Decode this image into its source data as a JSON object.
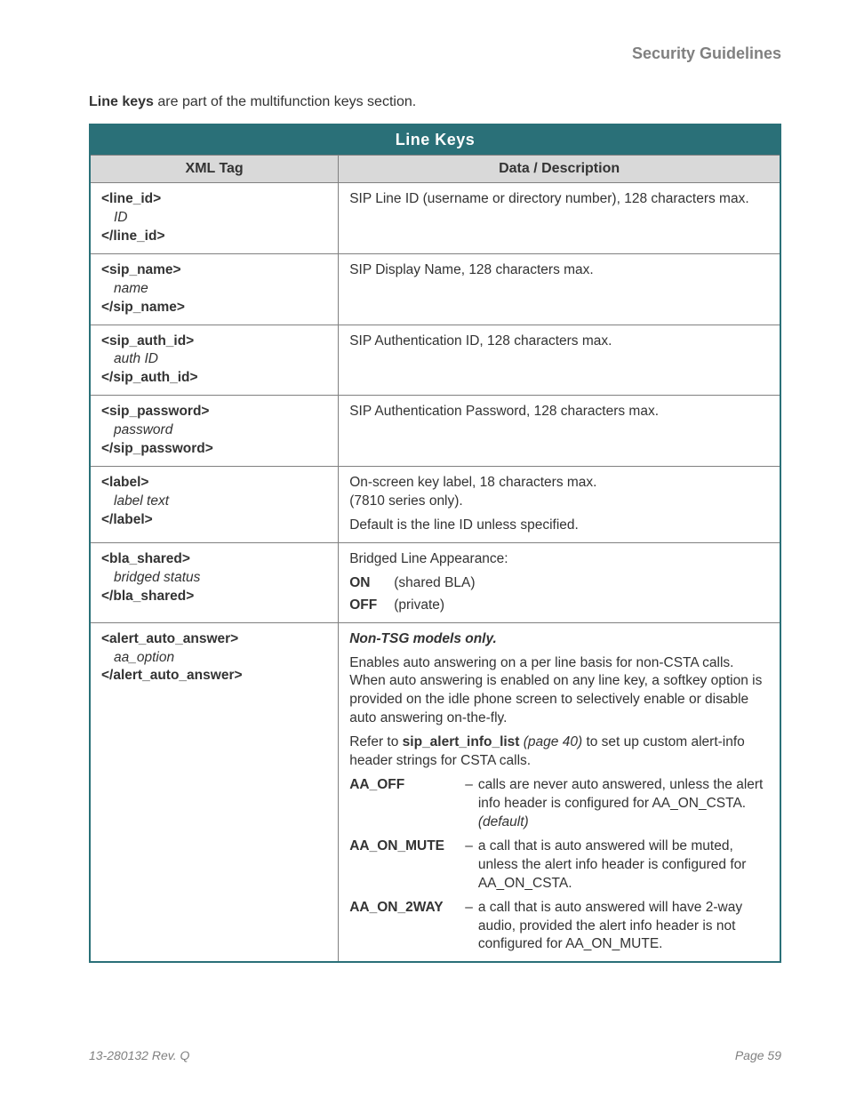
{
  "header": {
    "section_title": "Security Guidelines"
  },
  "intro": {
    "bold_lead": "Line keys",
    "rest": " are part of the multifunction keys section."
  },
  "table": {
    "title": "Line Keys",
    "col1": "XML Tag",
    "col2": "Data / Description",
    "rows": {
      "line_id": {
        "open": "<line_id>",
        "val": "ID",
        "close": "</line_id>",
        "desc": "SIP Line ID (username or directory number), 128 characters max."
      },
      "sip_name": {
        "open": "<sip_name>",
        "val": "name",
        "close": "</sip_name>",
        "desc": "SIP Display Name, 128 characters max."
      },
      "sip_auth_id": {
        "open": "<sip_auth_id>",
        "val": "auth ID",
        "close": "</sip_auth_id>",
        "desc": "SIP Authentication ID, 128 characters max."
      },
      "sip_password": {
        "open": "<sip_password>",
        "val": "password",
        "close": "</sip_password>",
        "desc": "SIP Authentication Password, 128 characters max."
      },
      "label": {
        "open": "<label>",
        "val": "label text",
        "close": "</label>",
        "desc_line1": "On-screen key label, 18 characters max.",
        "desc_line2": "(7810 series only).",
        "desc_line3": "Default is the line ID unless specified."
      },
      "bla_shared": {
        "open": "<bla_shared>",
        "val": "bridged status",
        "close": "</bla_shared>",
        "desc_lead": "Bridged Line Appearance:",
        "on_key": "ON",
        "on_val": "(shared BLA)",
        "off_key": "OFF",
        "off_val": "(private)"
      },
      "alert_auto_answer": {
        "open": "<alert_auto_answer>",
        "val": "aa_option",
        "close": "</alert_auto_answer>",
        "note": "Non-TSG models only.",
        "para1": "Enables auto answering on a per line basis for non-CSTA calls. When auto answering is enabled on any line key, a softkey option is provided on the idle phone screen to selectively enable or disable auto answering on-the-fly.",
        "para2_pre": "Refer to ",
        "para2_bold": "sip_alert_info_list",
        "para2_ital": " (page 40)",
        "para2_post": " to set up custom alert-info header strings for CSTA calls.",
        "aa_off_key": "AA_OFF",
        "aa_off_val_pre": "calls are never auto answered, unless the alert info header is configured for AA_ON_CSTA. ",
        "aa_off_default": "(default)",
        "aa_on_mute_key": "AA_ON_MUTE",
        "aa_on_mute_val": "a call that is auto answered will be muted, unless the alert info header is configured for AA_ON_CSTA.",
        "aa_on_2way_key": "AA_ON_2WAY",
        "aa_on_2way_val": "a call that is auto answered will have 2-way audio, provided the alert info header is not configured for AA_ON_MUTE."
      }
    }
  },
  "footer": {
    "left": "13-280132  Rev. Q",
    "right": "Page 59"
  }
}
